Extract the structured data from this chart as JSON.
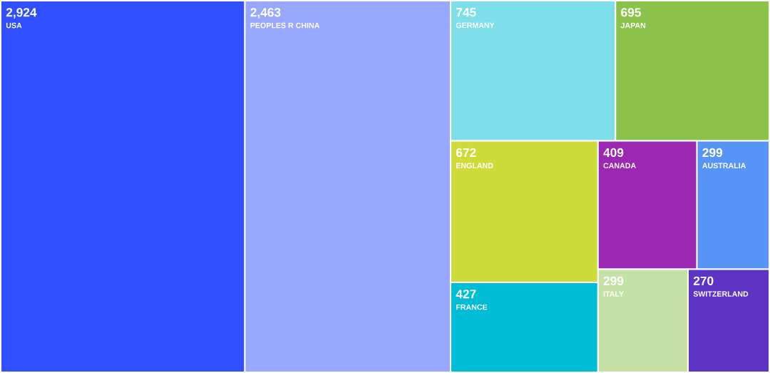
{
  "chart_data": {
    "type": "other",
    "categories": [
      "USA",
      "PEOPLES R CHINA",
      "GERMANY",
      "JAPAN",
      "ENGLAND",
      "FRANCE",
      "CANADA",
      "AUSTRALIA",
      "ITALY",
      "SWITZERLAND"
    ],
    "values": [
      2924,
      2463,
      745,
      695,
      672,
      427,
      409,
      299,
      299,
      270
    ],
    "value_labels": [
      "2,924",
      "2,463",
      "745",
      "695",
      "672",
      "427",
      "409",
      "299",
      "299",
      "270"
    ],
    "colors": [
      "#304ffe",
      "#98a8ff",
      "#7edfeb",
      "#8bc34a",
      "#cddc39",
      "#00bcd4",
      "#9c27b0",
      "#5695f5",
      "#c5e1a5",
      "#5c35c5"
    ]
  }
}
